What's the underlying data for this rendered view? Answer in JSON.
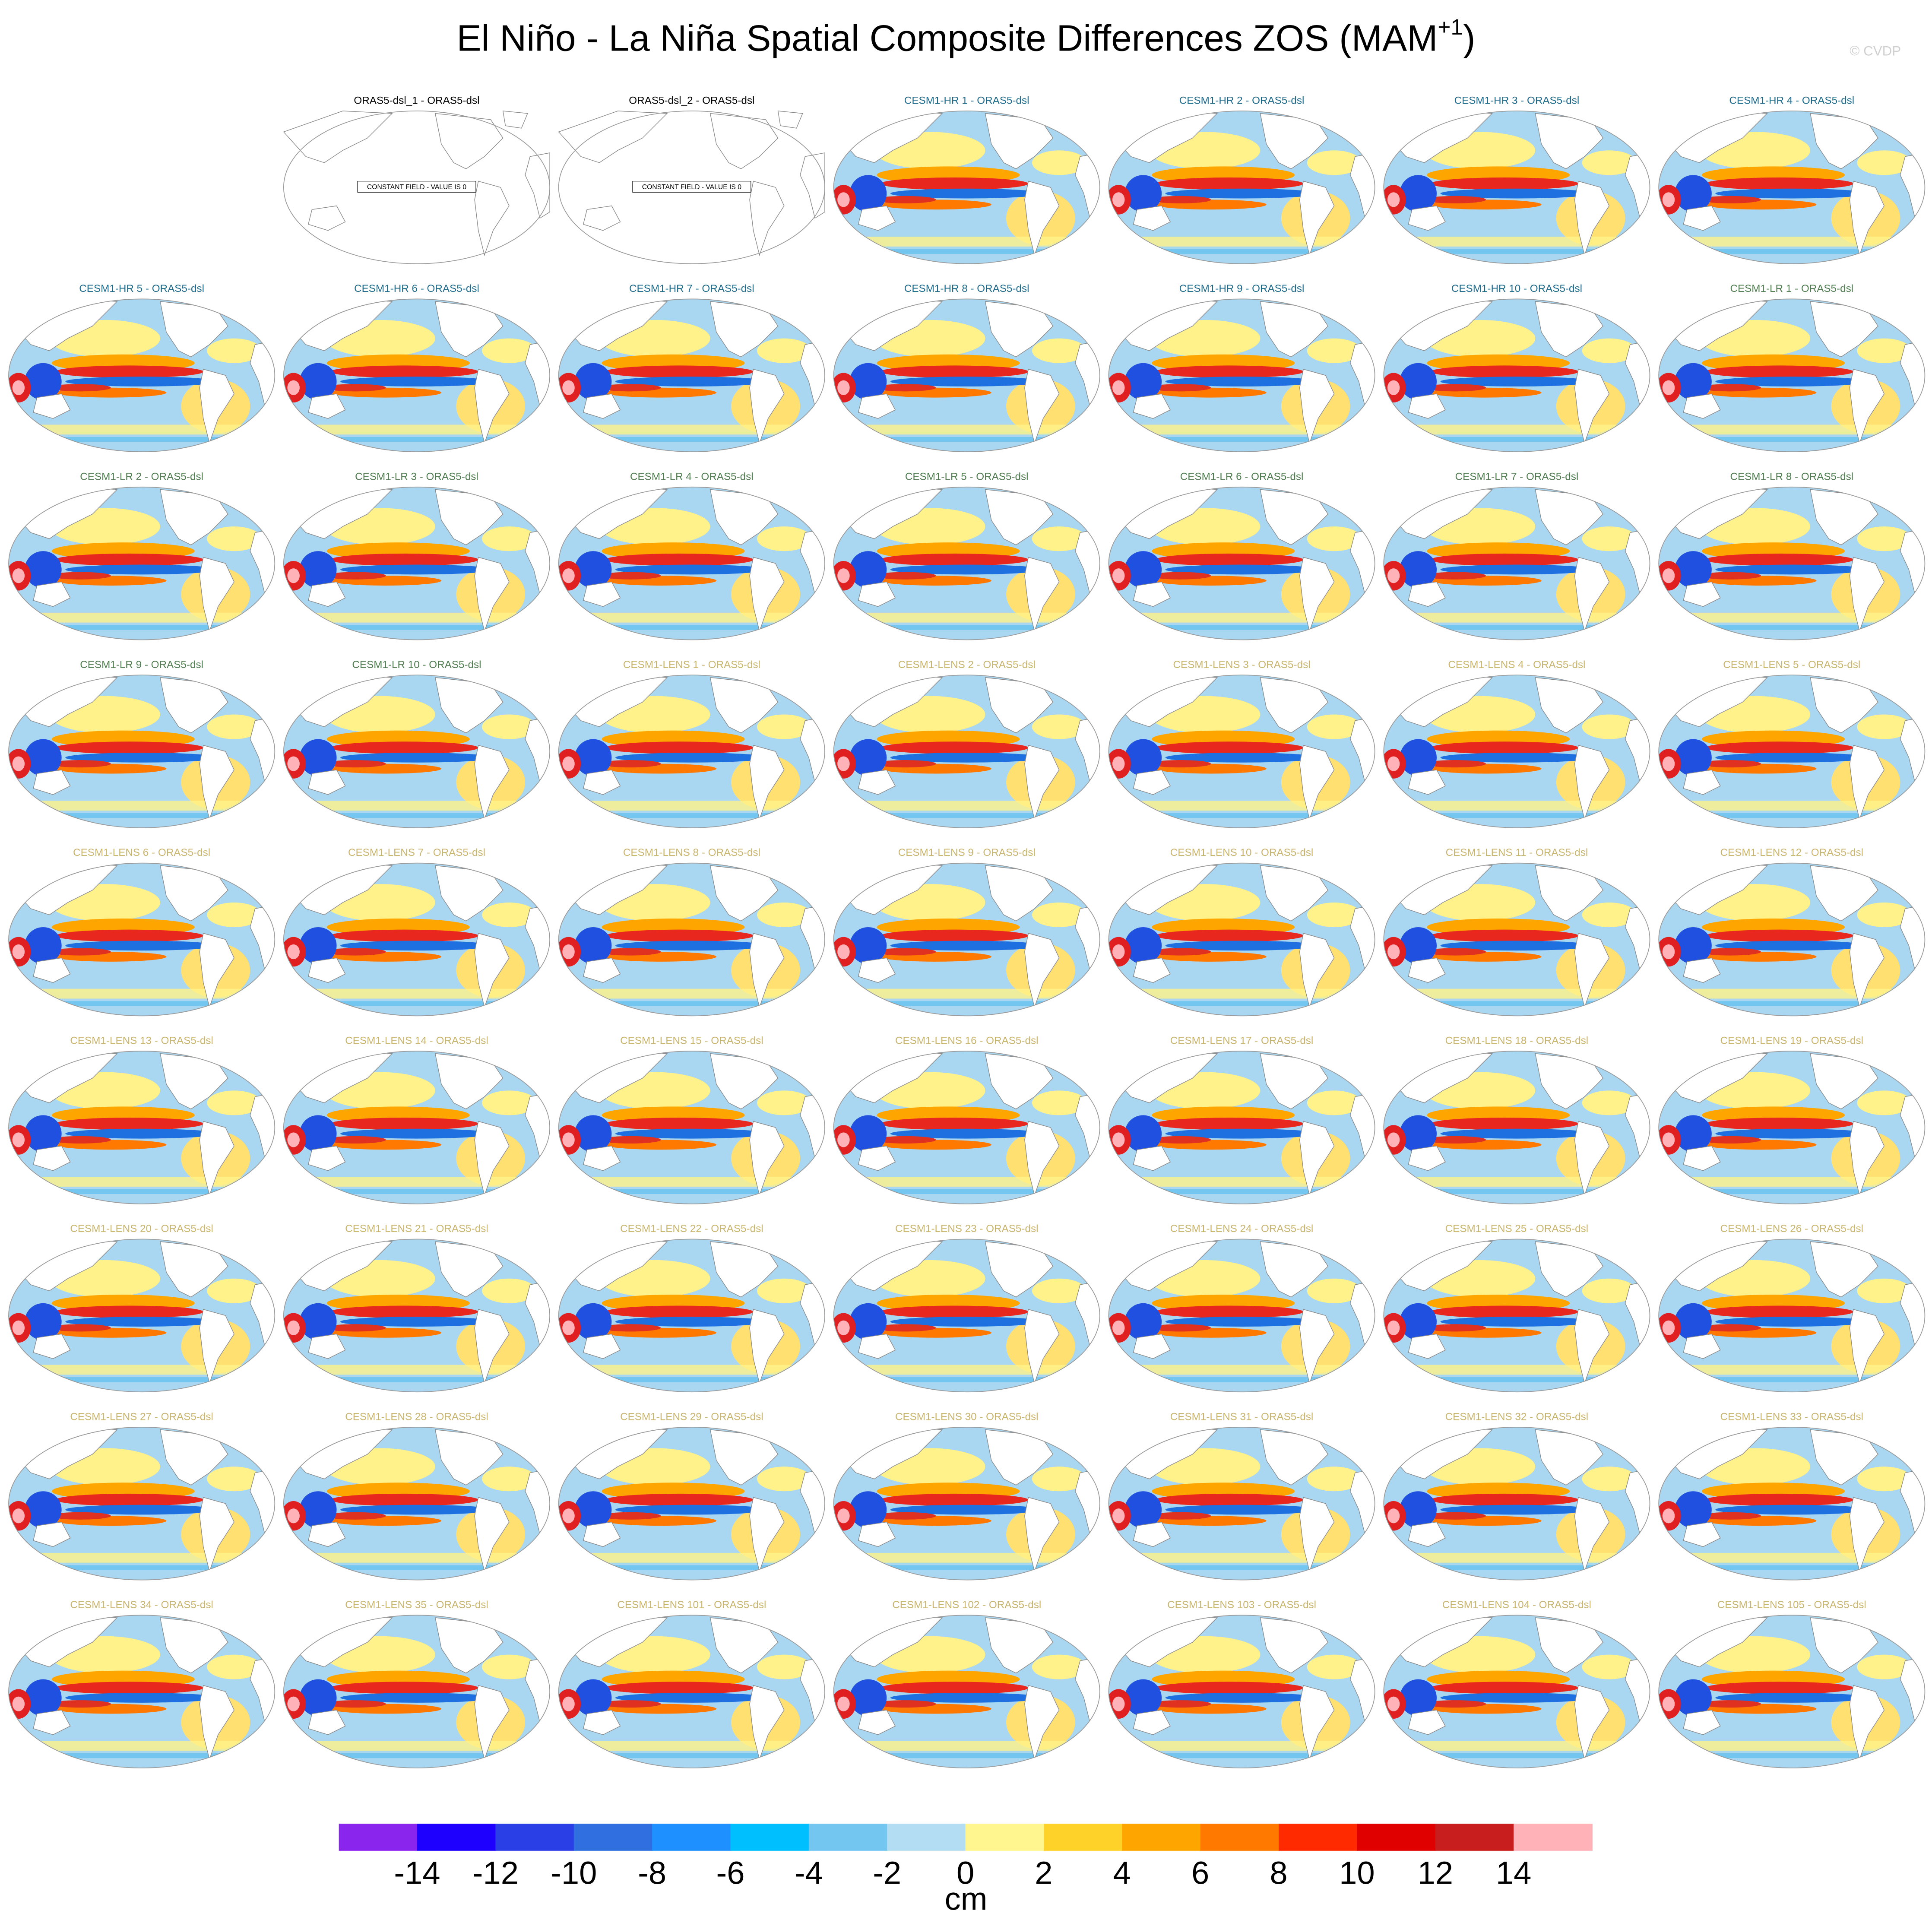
{
  "title": {
    "text": "El Niño - La Niña Spatial Composite Differences ZOS (MAM",
    "superscript": "+1",
    "closing": ")"
  },
  "watermark": "© CVDP",
  "panels": [
    {
      "title": "ORAS5-dsl_1 - ORAS5-dsl",
      "color": "#000000",
      "note": "CONSTANT FIELD - VALUE IS 0"
    },
    {
      "title": "ORAS5-dsl_2 - ORAS5-dsl",
      "color": "#000000",
      "note": "CONSTANT FIELD - VALUE IS 0"
    },
    {
      "title": "CESM1-HR 1 - ORAS5-dsl",
      "color": "#1f6b8c"
    },
    {
      "title": "CESM1-HR 2 - ORAS5-dsl",
      "color": "#1f6b8c"
    },
    {
      "title": "CESM1-HR 3 - ORAS5-dsl",
      "color": "#1f6b8c"
    },
    {
      "title": "CESM1-HR 4 - ORAS5-dsl",
      "color": "#1f6b8c"
    },
    {
      "title": "CESM1-HR 5 - ORAS5-dsl",
      "color": "#1f6b8c"
    },
    {
      "title": "CESM1-HR 6 - ORAS5-dsl",
      "color": "#1f6b8c"
    },
    {
      "title": "CESM1-HR 7 - ORAS5-dsl",
      "color": "#1f6b8c"
    },
    {
      "title": "CESM1-HR 8 - ORAS5-dsl",
      "color": "#1f6b8c"
    },
    {
      "title": "CESM1-HR 9 - ORAS5-dsl",
      "color": "#1f6b8c"
    },
    {
      "title": "CESM1-HR 10 - ORAS5-dsl",
      "color": "#1f6b8c"
    },
    {
      "title": "CESM1-LR 1 - ORAS5-dsl",
      "color": "#4f7d4f"
    },
    {
      "title": "CESM1-LR 2 - ORAS5-dsl",
      "color": "#4f7d4f"
    },
    {
      "title": "CESM1-LR 3 - ORAS5-dsl",
      "color": "#4f7d4f"
    },
    {
      "title": "CESM1-LR 4 - ORAS5-dsl",
      "color": "#4f7d4f"
    },
    {
      "title": "CESM1-LR 5 - ORAS5-dsl",
      "color": "#4f7d4f"
    },
    {
      "title": "CESM1-LR 6 - ORAS5-dsl",
      "color": "#4f7d4f"
    },
    {
      "title": "CESM1-LR 7 - ORAS5-dsl",
      "color": "#4f7d4f"
    },
    {
      "title": "CESM1-LR 8 - ORAS5-dsl",
      "color": "#4f7d4f"
    },
    {
      "title": "CESM1-LR 9 - ORAS5-dsl",
      "color": "#4f7d4f"
    },
    {
      "title": "CESM1-LR 10 - ORAS5-dsl",
      "color": "#4f7d4f"
    },
    {
      "title": "CESM1-LENS 1 - ORAS5-dsl",
      "color": "#c9b56e"
    },
    {
      "title": "CESM1-LENS 2 - ORAS5-dsl",
      "color": "#c9b56e"
    },
    {
      "title": "CESM1-LENS 3 - ORAS5-dsl",
      "color": "#c9b56e"
    },
    {
      "title": "CESM1-LENS 4 - ORAS5-dsl",
      "color": "#c9b56e"
    },
    {
      "title": "CESM1-LENS 5 - ORAS5-dsl",
      "color": "#c9b56e"
    },
    {
      "title": "CESM1-LENS 6 - ORAS5-dsl",
      "color": "#c9b56e"
    },
    {
      "title": "CESM1-LENS 7 - ORAS5-dsl",
      "color": "#c9b56e"
    },
    {
      "title": "CESM1-LENS 8 - ORAS5-dsl",
      "color": "#c9b56e"
    },
    {
      "title": "CESM1-LENS 9 - ORAS5-dsl",
      "color": "#c9b56e"
    },
    {
      "title": "CESM1-LENS 10 - ORAS5-dsl",
      "color": "#c9b56e"
    },
    {
      "title": "CESM1-LENS 11 - ORAS5-dsl",
      "color": "#c9b56e"
    },
    {
      "title": "CESM1-LENS 12 - ORAS5-dsl",
      "color": "#c9b56e"
    },
    {
      "title": "CESM1-LENS 13 - ORAS5-dsl",
      "color": "#c9b56e"
    },
    {
      "title": "CESM1-LENS 14 - ORAS5-dsl",
      "color": "#c9b56e"
    },
    {
      "title": "CESM1-LENS 15 - ORAS5-dsl",
      "color": "#c9b56e"
    },
    {
      "title": "CESM1-LENS 16 - ORAS5-dsl",
      "color": "#c9b56e"
    },
    {
      "title": "CESM1-LENS 17 - ORAS5-dsl",
      "color": "#c9b56e"
    },
    {
      "title": "CESM1-LENS 18 - ORAS5-dsl",
      "color": "#c9b56e"
    },
    {
      "title": "CESM1-LENS 19 - ORAS5-dsl",
      "color": "#c9b56e"
    },
    {
      "title": "CESM1-LENS 20 - ORAS5-dsl",
      "color": "#c9b56e"
    },
    {
      "title": "CESM1-LENS 21 - ORAS5-dsl",
      "color": "#c9b56e"
    },
    {
      "title": "CESM1-LENS 22 - ORAS5-dsl",
      "color": "#c9b56e"
    },
    {
      "title": "CESM1-LENS 23 - ORAS5-dsl",
      "color": "#c9b56e"
    },
    {
      "title": "CESM1-LENS 24 - ORAS5-dsl",
      "color": "#c9b56e"
    },
    {
      "title": "CESM1-LENS 25 - ORAS5-dsl",
      "color": "#c9b56e"
    },
    {
      "title": "CESM1-LENS 26 - ORAS5-dsl",
      "color": "#c9b56e"
    },
    {
      "title": "CESM1-LENS 27 - ORAS5-dsl",
      "color": "#c9b56e"
    },
    {
      "title": "CESM1-LENS 28 - ORAS5-dsl",
      "color": "#c9b56e"
    },
    {
      "title": "CESM1-LENS 29 - ORAS5-dsl",
      "color": "#c9b56e"
    },
    {
      "title": "CESM1-LENS 30 - ORAS5-dsl",
      "color": "#c9b56e"
    },
    {
      "title": "CESM1-LENS 31 - ORAS5-dsl",
      "color": "#c9b56e"
    },
    {
      "title": "CESM1-LENS 32 - ORAS5-dsl",
      "color": "#c9b56e"
    },
    {
      "title": "CESM1-LENS 33 - ORAS5-dsl",
      "color": "#c9b56e"
    },
    {
      "title": "CESM1-LENS 34 - ORAS5-dsl",
      "color": "#c9b56e"
    },
    {
      "title": "CESM1-LENS 35 - ORAS5-dsl",
      "color": "#c9b56e"
    },
    {
      "title": "CESM1-LENS 101 - ORAS5-dsl",
      "color": "#c9b56e"
    },
    {
      "title": "CESM1-LENS 102 - ORAS5-dsl",
      "color": "#c9b56e"
    },
    {
      "title": "CESM1-LENS 103 - ORAS5-dsl",
      "color": "#c9b56e"
    },
    {
      "title": "CESM1-LENS 104 - ORAS5-dsl",
      "color": "#c9b56e"
    },
    {
      "title": "CESM1-LENS 105 - ORAS5-dsl",
      "color": "#c9b56e"
    }
  ],
  "colorbar": {
    "levels": [
      -14,
      -12,
      -10,
      -8,
      -6,
      -4,
      -2,
      0,
      2,
      4,
      6,
      8,
      10,
      12,
      14
    ],
    "colors": [
      "#8a25ee",
      "#1e00ff",
      "#2a40e6",
      "#2f6fe0",
      "#1e90ff",
      "#00bfff",
      "#72c6f0",
      "#b3ddf2",
      "#fff68f",
      "#ffd22a",
      "#ffa500",
      "#ff7800",
      "#ff2a00",
      "#e00000",
      "#c81e1e",
      "#ffb3b8"
    ],
    "label": "cm"
  }
}
